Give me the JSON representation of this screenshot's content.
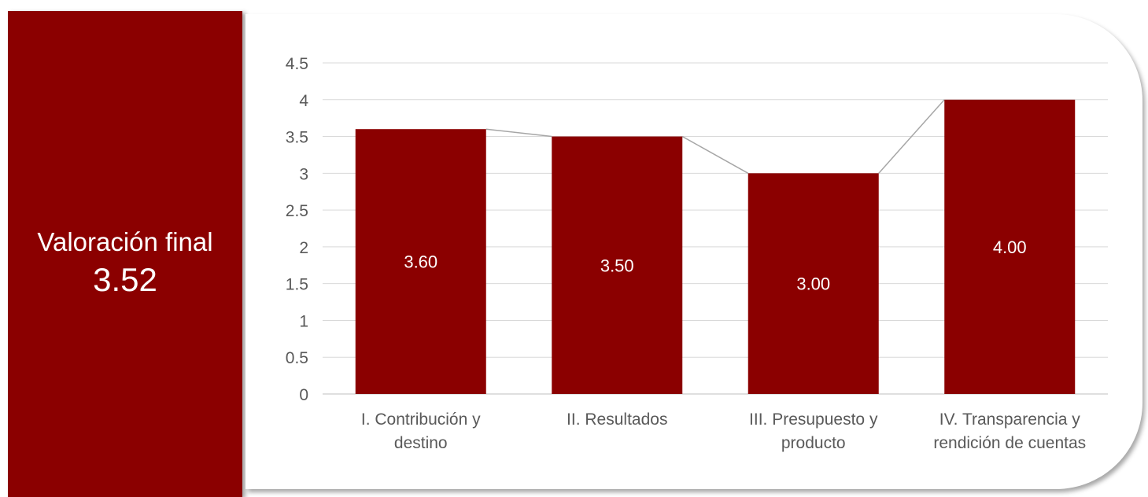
{
  "summary": {
    "label": "Valoración final",
    "score": "3.52"
  },
  "colors": {
    "accent": "#8b0000",
    "grid": "#d9d9d9",
    "connector": "#a6a6a6",
    "text": "#595959"
  },
  "chart_data": {
    "type": "bar",
    "categories": [
      [
        "I. Contribución y",
        "destino"
      ],
      [
        "II. Resultados"
      ],
      [
        "III. Presupuesto y",
        "producto"
      ],
      [
        "IV. Transparencia y",
        "rendición de cuentas"
      ]
    ],
    "values": [
      3.6,
      3.5,
      3.0,
      4.0
    ],
    "data_labels": [
      "3.60",
      "3.50",
      "3.00",
      "4.00"
    ],
    "y_ticks": [
      "0",
      "0.5",
      "1",
      "1.5",
      "2",
      "2.5",
      "3",
      "3.5",
      "4",
      "4.5"
    ],
    "ylim": [
      0,
      4.5
    ],
    "title": "",
    "xlabel": "",
    "ylabel": "",
    "grid": true,
    "connector_lines": true
  }
}
